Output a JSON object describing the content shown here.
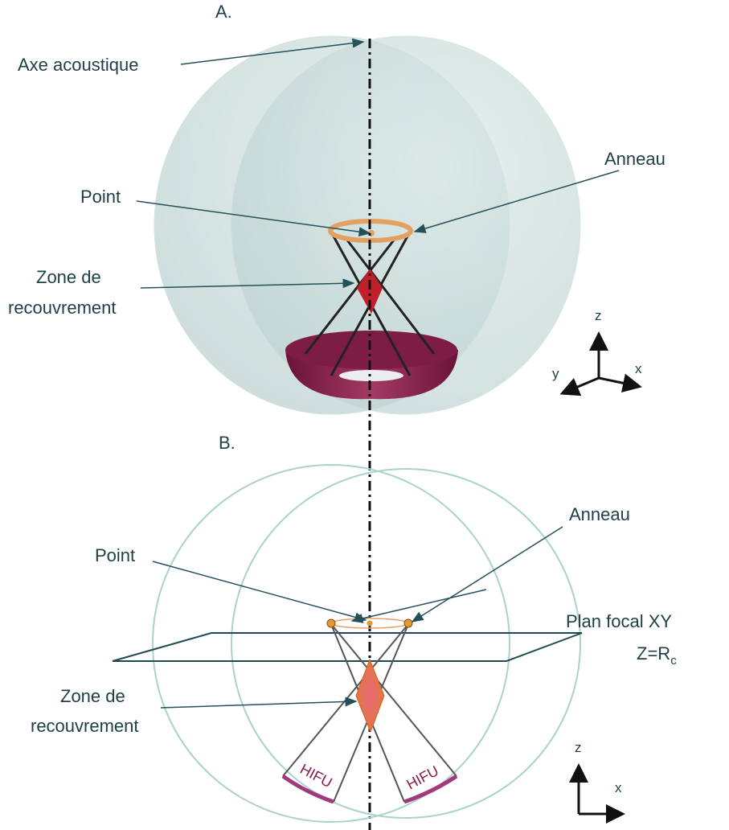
{
  "panel_a": {
    "label": "A.",
    "axis_label": "Axe acoustique",
    "ring_label": "Anneau",
    "point_label": "Point",
    "overlap_label": [
      "Zone de",
      "recouvrement"
    ],
    "axes": {
      "z": "z",
      "y": "y",
      "x": "x"
    }
  },
  "panel_b": {
    "label": "B.",
    "ring_label": "Anneau",
    "point_label": "Point",
    "focal_plane": "Plan focal XY",
    "focal_eq": {
      "main": "Z=R",
      "sub": "c"
    },
    "overlap_label": [
      "Zone de",
      "recouvrement"
    ],
    "transducers": [
      "HIFU",
      "HIFU"
    ],
    "axes": {
      "z": "z",
      "x": "x"
    }
  }
}
